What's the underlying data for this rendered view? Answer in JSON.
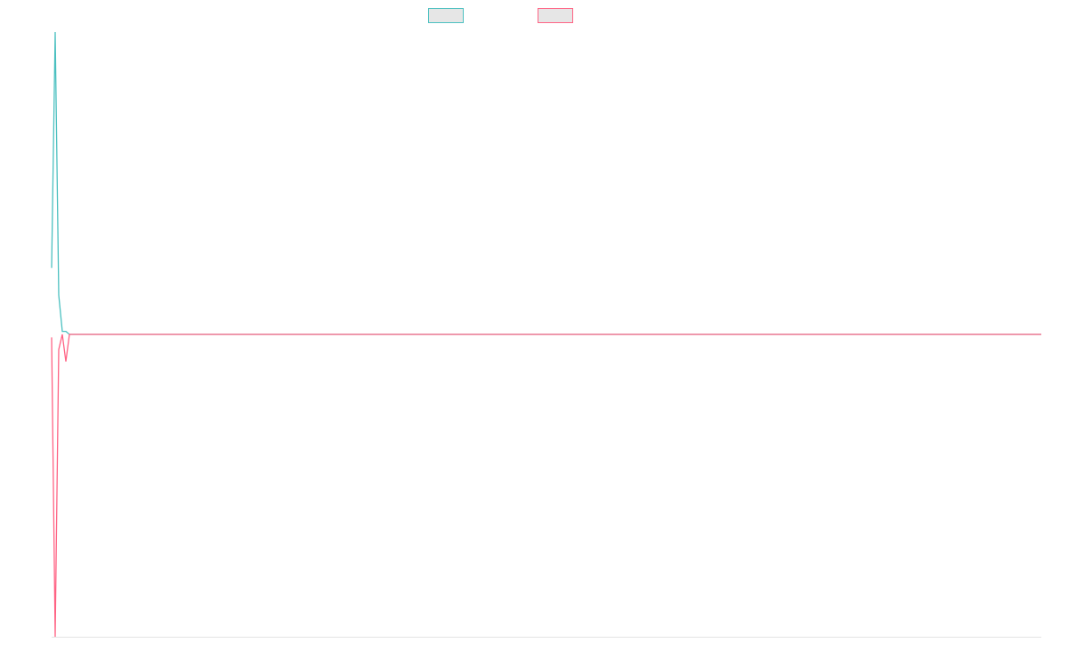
{
  "chart_data": {
    "type": "line",
    "categories": [
      null,
      null,
      null,
      null,
      null,
      null,
      null,
      null,
      null,
      null,
      null,
      null,
      null,
      null,
      null,
      null,
      null,
      null,
      null,
      null,
      null,
      null,
      null,
      null,
      null,
      null,
      null,
      null,
      null,
      null,
      null,
      null,
      null,
      null,
      null,
      null,
      null,
      null,
      null,
      null,
      null,
      null,
      null,
      null,
      null,
      null,
      null,
      null,
      null,
      null,
      null,
      null,
      null,
      null,
      null,
      null,
      null,
      null,
      null,
      null,
      null,
      null,
      null,
      null,
      null,
      null,
      null,
      null,
      null,
      null,
      null,
      null,
      null,
      null,
      null,
      null,
      null,
      null,
      null,
      null,
      null,
      null,
      null,
      null,
      null,
      null,
      null,
      null,
      null,
      null,
      null,
      null,
      null,
      null,
      null,
      null,
      null,
      null,
      null,
      null,
      null,
      null,
      null,
      null,
      null,
      null,
      null,
      null,
      null,
      null,
      null,
      null,
      null,
      null,
      null,
      null,
      null,
      null,
      null,
      null,
      null,
      null,
      null,
      null,
      null,
      null,
      null,
      null,
      null,
      null,
      null,
      null,
      null,
      null,
      null,
      null,
      null,
      null,
      null,
      null,
      null,
      null,
      null,
      null,
      null,
      null,
      null,
      null,
      null,
      null,
      null,
      null,
      null,
      null,
      null,
      null,
      null,
      null,
      null,
      null,
      null,
      null,
      null,
      null,
      null,
      null,
      null,
      null,
      null,
      null,
      null,
      null,
      null,
      null,
      null,
      null,
      null,
      null,
      null,
      null,
      null,
      null,
      null,
      null,
      null,
      null,
      null,
      null,
      null,
      null,
      null,
      null,
      null,
      null,
      null,
      null,
      null,
      null,
      null,
      null,
      null,
      null,
      null,
      null,
      null,
      null,
      null,
      null,
      null,
      null,
      null,
      null,
      null,
      null,
      null,
      null,
      null,
      null,
      null,
      null,
      null,
      null,
      null,
      null,
      null,
      null,
      null,
      null,
      null,
      null,
      null,
      null,
      null,
      null,
      null,
      null,
      null,
      null,
      null,
      null,
      null,
      null,
      null,
      null,
      null,
      null,
      null,
      null,
      null,
      null,
      null,
      null,
      null,
      null,
      null,
      null,
      null,
      null,
      null,
      null,
      null,
      null,
      null,
      null,
      null,
      null,
      null,
      null,
      null,
      null,
      null,
      null,
      null,
      null,
      null,
      null,
      null,
      null,
      null
    ],
    "series": [
      {
        "color": "#4bc0c0",
        "values": [
          0.22,
          1,
          0.13,
          0.01,
          0.01,
          0,
          0,
          0,
          0,
          0,
          0,
          0,
          0,
          0,
          0,
          0,
          0,
          0,
          0,
          0,
          0,
          0,
          0,
          0,
          0,
          0,
          0,
          0,
          0,
          0,
          0,
          0,
          0,
          0,
          0,
          0,
          0,
          0,
          0,
          0,
          0,
          0,
          0,
          0,
          0,
          0,
          0,
          0,
          0,
          0,
          0,
          0,
          0,
          0,
          0,
          0,
          0,
          0,
          0,
          0,
          0,
          0,
          0,
          0,
          0,
          0,
          0,
          0,
          0,
          0,
          0,
          0,
          0,
          0,
          0,
          0,
          0,
          0,
          0,
          0,
          0,
          0,
          0,
          0,
          0,
          0,
          0,
          0,
          0,
          0,
          0,
          0,
          0,
          0,
          0,
          0,
          0,
          0,
          0,
          0,
          0,
          0,
          0,
          0,
          0,
          0,
          0,
          0,
          0,
          0,
          0,
          0,
          0,
          0,
          0,
          0,
          0,
          0,
          0,
          0,
          0,
          0,
          0,
          0,
          0,
          0,
          0,
          0,
          0,
          0,
          0,
          0,
          0,
          0,
          0,
          0,
          0,
          0,
          0,
          0,
          0,
          0,
          0,
          0,
          0,
          0,
          0,
          0,
          0,
          0,
          0,
          0,
          0,
          0,
          0,
          0,
          0,
          0,
          0,
          0,
          0,
          0,
          0,
          0,
          0,
          0,
          0,
          0,
          0,
          0,
          0,
          0,
          0,
          0,
          0,
          0,
          0,
          0,
          0,
          0,
          0,
          0,
          0,
          0,
          0,
          0,
          0,
          0,
          0,
          0,
          0,
          0,
          0,
          0,
          0,
          0,
          0,
          0,
          0,
          0,
          0,
          0,
          0,
          0,
          0,
          0,
          0,
          0,
          0,
          0,
          0,
          0,
          0,
          0,
          0,
          0,
          0,
          0,
          0,
          0,
          0,
          0,
          0,
          0,
          0,
          0,
          0,
          0,
          0,
          0,
          0,
          0,
          0,
          0,
          0,
          0,
          0,
          0,
          0,
          0,
          0,
          0,
          0,
          0,
          0,
          0,
          0,
          0,
          0,
          0,
          0,
          0,
          0,
          0,
          0,
          0,
          0,
          0,
          0,
          0,
          0,
          0,
          0,
          0,
          0,
          0,
          0,
          0,
          0,
          0,
          0,
          0,
          0,
          0,
          0,
          0,
          0,
          0,
          0
        ]
      },
      {
        "color": "#ff6384",
        "values": [
          -0.01,
          -1,
          -0.05,
          0,
          -0.09,
          0,
          0,
          0,
          0,
          0,
          0,
          0,
          0,
          0,
          0,
          0,
          0,
          0,
          0,
          0,
          0,
          0,
          0,
          0,
          0,
          0,
          0,
          0,
          0,
          0,
          0,
          0,
          0,
          0,
          0,
          0,
          0,
          0,
          0,
          0,
          0,
          0,
          0,
          0,
          0,
          0,
          0,
          0,
          0,
          0,
          0,
          0,
          0,
          0,
          0,
          0,
          0,
          0,
          0,
          0,
          0,
          0,
          0,
          0,
          0,
          0,
          0,
          0,
          0,
          0,
          0,
          0,
          0,
          0,
          0,
          0,
          0,
          0,
          0,
          0,
          0,
          0,
          0,
          0,
          0,
          0,
          0,
          0,
          0,
          0,
          0,
          0,
          0,
          0,
          0,
          0,
          0,
          0,
          0,
          0,
          0,
          0,
          0,
          0,
          0,
          0,
          0,
          0,
          0,
          0,
          0,
          0,
          0,
          0,
          0,
          0,
          0,
          0,
          0,
          0,
          0,
          0,
          0,
          0,
          0,
          0,
          0,
          0,
          0,
          0,
          0,
          0,
          0,
          0,
          0,
          0,
          0,
          0,
          0,
          0,
          0,
          0,
          0,
          0,
          0,
          0,
          0,
          0,
          0,
          0,
          0,
          0,
          0,
          0,
          0,
          0,
          0,
          0,
          0,
          0,
          0,
          0,
          0,
          0,
          0,
          0,
          0,
          0,
          0,
          0,
          0,
          0,
          0,
          0,
          0,
          0,
          0,
          0,
          0,
          0,
          0,
          0,
          0,
          0,
          0,
          0,
          0,
          0,
          0,
          0,
          0,
          0,
          0,
          0,
          0,
          0,
          0,
          0,
          0,
          0,
          0,
          0,
          0,
          0,
          0,
          0,
          0,
          0,
          0,
          0,
          0,
          0,
          0,
          0,
          0,
          0,
          0,
          0,
          0,
          0,
          0,
          0,
          0,
          0,
          0,
          0,
          0,
          0,
          0,
          0,
          0,
          0,
          0,
          0,
          0,
          0,
          0,
          0,
          0,
          0,
          0,
          0,
          0,
          0,
          0,
          0,
          0,
          0,
          0,
          0,
          0,
          0,
          0,
          0,
          0,
          0,
          0,
          0,
          0,
          0,
          0,
          0,
          0,
          0,
          0,
          0,
          0,
          0,
          0,
          0,
          0,
          0,
          0,
          0,
          0,
          0,
          0,
          0,
          0
        ]
      }
    ],
    "ylim": [
      -1,
      1
    ]
  }
}
